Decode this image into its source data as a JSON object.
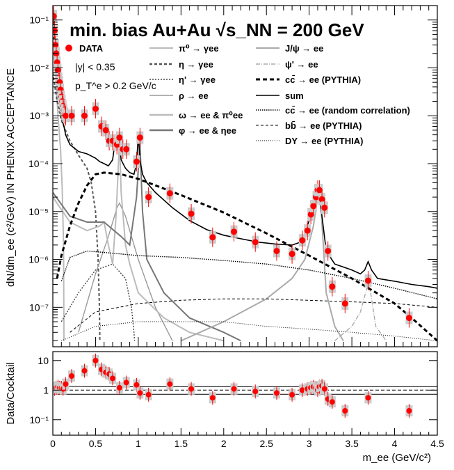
{
  "chart_data": {
    "type": "scatter",
    "title": "min. bias Au+Au √s_NN = 200 GeV",
    "info_lines": [
      "|y| < 0.35",
      "p_T^e > 0.2 GeV/c"
    ],
    "xlabel": "m_ee (GeV/c²)",
    "xlim": [
      0,
      4.5
    ],
    "x_ticks": [
      "0",
      "0.5",
      "1",
      "1.5",
      "2",
      "2.5",
      "3",
      "3.5",
      "4",
      "4.5"
    ],
    "top_panel": {
      "ylabel": "dN/dm_ee (c²/GeV) IN PHENIX ACCEPTANCE",
      "yscale": "log",
      "ylim": [
        1.5e-08,
        0.2
      ],
      "y_ticks": [
        "10^-7",
        "10^-6",
        "10^-5",
        "10^-4",
        "10^-3",
        "10^-2",
        "10^-1"
      ],
      "legend": [
        {
          "label": "DATA",
          "color": "#ff0000",
          "style": "marker"
        },
        {
          "label": "π⁰ → γee",
          "color": "#bbbbbb",
          "style": "solid"
        },
        {
          "label": "η → γee",
          "color": "#555555",
          "style": "dashed"
        },
        {
          "label": "η' → γee",
          "color": "#444444",
          "style": "dotted"
        },
        {
          "label": "ρ → ee",
          "color": "#999999",
          "style": "solid"
        },
        {
          "label": "ω → ee & π⁰ee",
          "color": "#bbbbbb",
          "style": "solid"
        },
        {
          "label": "φ → ee & ηee",
          "color": "#777777",
          "style": "solid"
        },
        {
          "label": "J/ψ → ee",
          "color": "#aaaaaa",
          "style": "solid"
        },
        {
          "label": "ψ' → ee",
          "color": "#aaaaaa",
          "style": "dashdot"
        },
        {
          "label": "cc̄ → ee (PYTHIA)",
          "color": "#000000",
          "style": "thickdashed"
        },
        {
          "label": "sum",
          "color": "#000000",
          "style": "solid"
        },
        {
          "label": "cc̄ → ee (random correlation)",
          "color": "#000000",
          "style": "densedotted"
        },
        {
          "label": "bb̄ → ee (PYTHIA)",
          "color": "#000000",
          "style": "thindashed"
        },
        {
          "label": "DY → ee (PYTHIA)",
          "color": "#000000",
          "style": "finedotted"
        }
      ],
      "data": {
        "x": [
          0.01,
          0.02,
          0.03,
          0.04,
          0.05,
          0.06,
          0.07,
          0.08,
          0.09,
          0.1,
          0.11,
          0.12,
          0.13,
          0.14,
          0.15,
          0.22,
          0.37,
          0.5,
          0.57,
          0.62,
          0.66,
          0.7,
          0.75,
          0.78,
          0.82,
          0.86,
          0.98,
          1.02,
          1.12,
          1.37,
          1.62,
          1.87,
          2.12,
          2.37,
          2.62,
          2.8,
          2.92,
          2.98,
          3.02,
          3.05,
          3.08,
          3.1,
          3.12,
          3.15,
          3.18,
          3.22,
          3.27,
          3.42,
          3.69,
          4.17
        ],
        "y": [
          0.12,
          0.06,
          0.03,
          0.02,
          0.013,
          0.009,
          0.006,
          0.005,
          0.0035,
          0.0025,
          0.002,
          0.0016,
          0.0013,
          0.0011,
          0.001,
          0.001,
          0.001,
          0.0014,
          0.0006,
          0.0005,
          0.0003,
          0.0003,
          0.00025,
          0.00035,
          0.0002,
          0.0002,
          0.00011,
          0.00035,
          2e-05,
          2.4e-05,
          9e-06,
          2.9e-06,
          3.8e-06,
          2.3e-06,
          1.5e-06,
          1.3e-06,
          2.5e-06,
          4e-06,
          8.7e-06,
          1.3e-05,
          2e-05,
          2.8e-05,
          2.8e-05,
          1.8e-05,
          1.2e-05,
          1.5e-06,
          2.7e-07,
          1.2e-07,
          3.6e-07,
          6e-08
        ]
      },
      "curves": {
        "sum": {
          "x": [
            0.0,
            0.02,
            0.05,
            0.08,
            0.1,
            0.13,
            0.15,
            0.2,
            0.3,
            0.4,
            0.5,
            0.55,
            0.6,
            0.65,
            0.7,
            0.73,
            0.76,
            0.78,
            0.8,
            0.85,
            0.9,
            0.95,
            0.98,
            1.0,
            1.02,
            1.05,
            1.1,
            1.2,
            1.4,
            1.6,
            1.8,
            2.0,
            2.2,
            2.4,
            2.6,
            2.8,
            2.9,
            2.95,
            3.0,
            3.05,
            3.08,
            3.1,
            3.12,
            3.15,
            3.2,
            3.3,
            3.5,
            3.6,
            3.65,
            3.69,
            3.73,
            3.8,
            4.0,
            4.2,
            4.4,
            4.5
          ],
          "y": [
            0.12,
            0.03,
            0.004,
            0.0015,
            0.0009,
            0.0006,
            0.0004,
            0.00025,
            0.00018,
            0.00016,
            0.00013,
            0.00011,
            0.0001,
            9e-05,
            0.00012,
            0.0003,
            0.0004,
            0.00025,
            0.00012,
            8e-05,
            6.5e-05,
            6e-05,
            0.0001,
            0.0004,
            0.00012,
            6e-05,
            4e-05,
            2.5e-05,
            1.2e-05,
            6.5e-06,
            4.2e-06,
            3.2e-06,
            2.7e-06,
            2.3e-06,
            2.1e-06,
            2e-06,
            2.3e-06,
            3.5e-06,
            6.5e-06,
            1.3e-05,
            2.2e-05,
            2.8e-05,
            2.2e-05,
            8e-06,
            1.5e-06,
            8e-07,
            6e-07,
            5e-07,
            6e-07,
            9e-07,
            6e-07,
            4e-07,
            3.5e-07,
            3e-07,
            2.7e-07,
            2.5e-07
          ]
        },
        "ccbar": {
          "x": [
            0.05,
            0.1,
            0.2,
            0.3,
            0.4,
            0.5,
            0.6,
            0.8,
            1.0,
            1.5,
            2.0,
            2.5,
            3.0,
            3.5,
            4.0,
            4.2,
            4.5
          ],
          "y": [
            4e-07,
            1.2e-06,
            5e-06,
            1.5e-05,
            3.5e-05,
            6e-05,
            6.5e-05,
            6e-05,
            4.8e-05,
            2.2e-05,
            9.5e-06,
            3.5e-06,
            1.2e-06,
            4e-07,
            1.2e-07,
            6e-08,
            2e-08
          ]
        },
        "random": {
          "x": [
            0.1,
            0.2,
            0.4,
            0.6,
            1.0,
            1.5,
            2.0,
            2.5,
            3.0,
            3.5,
            4.0,
            4.5
          ],
          "y": [
            3.5e-07,
            1.1e-06,
            1.5e-06,
            1.4e-06,
            1.2e-06,
            1.1e-06,
            9.5e-07,
            8e-07,
            6e-07,
            4e-07,
            2.5e-07,
            1.5e-07
          ]
        },
        "bbbar": {
          "x": [
            0.2,
            0.5,
            1.0,
            1.5,
            2.0,
            2.5,
            3.0,
            3.5,
            4.0,
            4.5
          ],
          "y": [
            3e-08,
            8e-08,
            1.2e-07,
            1.4e-07,
            1.5e-07,
            1.5e-07,
            1.4e-07,
            1.3e-07,
            1.2e-07,
            1e-07
          ]
        },
        "dy": {
          "x": [
            0.1,
            0.5,
            1.0,
            1.5,
            2.0,
            2.5,
            3.0,
            3.5,
            4.0,
            4.5
          ],
          "y": [
            2e-08,
            4e-08,
            5e-08,
            5e-08,
            5e-08,
            4e-08,
            3.5e-08,
            3e-08,
            2.5e-08,
            2e-08
          ]
        },
        "pi0": {
          "x": [
            0.0,
            0.03,
            0.06,
            0.09,
            0.11,
            0.125,
            0.13
          ],
          "y": [
            0.12,
            0.01,
            0.001,
            0.0002,
            3e-05,
            2e-06,
            2e-08
          ]
        },
        "eta": {
          "x": [
            0.0,
            0.05,
            0.1,
            0.2,
            0.3,
            0.4,
            0.45,
            0.5,
            0.53,
            0.545,
            0.55
          ],
          "y": [
            0.008,
            0.002,
            0.0008,
            0.0003,
            0.00015,
            8e-05,
            4e-05,
            1e-05,
            1e-06,
            1e-07,
            2e-08
          ]
        },
        "etap": {
          "x": [
            0.1,
            0.3,
            0.5,
            0.7,
            0.85,
            0.92,
            0.95,
            0.957
          ],
          "y": [
            5e-08,
            2e-07,
            6e-07,
            8e-07,
            4e-07,
            1e-07,
            3e-08,
            2e-08
          ]
        },
        "rho": {
          "x": [
            0.3,
            0.5,
            0.65,
            0.75,
            0.78,
            0.85,
            1.0,
            1.2,
            1.4
          ],
          "y": [
            3e-08,
            5e-07,
            3e-06,
            1.2e-05,
            1.5e-05,
            8e-06,
            1e-06,
            1e-07,
            2e-08
          ]
        },
        "omega": {
          "x": [
            0.0,
            0.2,
            0.4,
            0.55,
            0.6,
            0.65,
            0.7,
            0.74,
            0.78,
            0.8,
            0.85,
            0.9,
            1.0,
            1.3,
            1.6,
            2.0
          ],
          "y": [
            2e-05,
            6e-06,
            4e-06,
            5e-06,
            6e-06,
            2e-06,
            8e-07,
            8e-06,
            0.0003,
            2.5e-05,
            2e-06,
            8e-07,
            2e-07,
            6e-08,
            3e-08,
            2e-08
          ]
        },
        "phi": {
          "x": [
            0.0,
            0.2,
            0.4,
            0.6,
            0.8,
            0.9,
            0.98,
            1.02,
            1.05,
            1.1,
            1.3,
            1.6,
            2.0,
            2.2
          ],
          "y": [
            2.5e-05,
            8e-06,
            6e-06,
            6e-06,
            3e-06,
            2e-06,
            2e-05,
            0.00028,
            1e-05,
            1e-06,
            2e-07,
            6e-08,
            3e-08,
            2e-08
          ]
        },
        "jpsi": {
          "x": [
            1.5,
            2.0,
            2.5,
            2.8,
            2.95,
            3.05,
            3.1,
            3.13,
            3.16,
            3.2,
            3.3,
            3.4
          ],
          "y": [
            2e-08,
            5e-08,
            1.5e-07,
            4e-07,
            1e-06,
            5e-06,
            2e-05,
            2e-05,
            3e-06,
            2e-07,
            4e-08,
            2e-08
          ]
        },
        "psip": {
          "x": [
            3.3,
            3.5,
            3.6,
            3.66,
            3.69,
            3.72,
            3.78,
            3.9
          ],
          "y": [
            2e-08,
            4e-08,
            8e-08,
            2e-07,
            3e-07,
            2e-07,
            4e-08,
            2e-08
          ]
        }
      }
    },
    "bottom_panel": {
      "ylabel": "Data/Cocktail",
      "yscale": "log",
      "ylim": [
        0.03,
        20
      ],
      "y_ticks": [
        "10^-1",
        "1",
        "10"
      ],
      "data": {
        "x": [
          0.02,
          0.04,
          0.06,
          0.08,
          0.1,
          0.12,
          0.15,
          0.22,
          0.37,
          0.5,
          0.57,
          0.62,
          0.66,
          0.7,
          0.78,
          0.86,
          0.98,
          1.02,
          1.12,
          1.37,
          1.62,
          1.87,
          2.12,
          2.37,
          2.62,
          2.8,
          2.92,
          2.98,
          3.02,
          3.05,
          3.08,
          3.1,
          3.12,
          3.15,
          3.18,
          3.22,
          3.27,
          3.42,
          3.69,
          4.17
        ],
        "y": [
          1.1,
          1.2,
          1.3,
          1.2,
          1.2,
          1.1,
          1.6,
          3.0,
          4.5,
          10.0,
          5.0,
          4.0,
          3.5,
          2.5,
          1.2,
          1.8,
          1.5,
          0.8,
          0.7,
          1.6,
          1.1,
          0.55,
          1.1,
          0.9,
          0.8,
          0.7,
          1.0,
          1.1,
          1.2,
          1.3,
          1.2,
          1.0,
          1.3,
          1.4,
          1.1,
          0.5,
          0.4,
          0.2,
          0.55,
          0.2
        ]
      },
      "bands": {
        "x": [
          0,
          0.5,
          1,
          1.5,
          2,
          2.5,
          3,
          3.5,
          4,
          4.5
        ],
        "upper": [
          1.35,
          1.3,
          1.3,
          1.3,
          1.3,
          1.3,
          1.3,
          1.3,
          1.3,
          1.3
        ],
        "lower": [
          0.72,
          0.72,
          0.72,
          0.72,
          0.72,
          0.72,
          0.72,
          0.72,
          0.72,
          0.72
        ]
      }
    }
  }
}
